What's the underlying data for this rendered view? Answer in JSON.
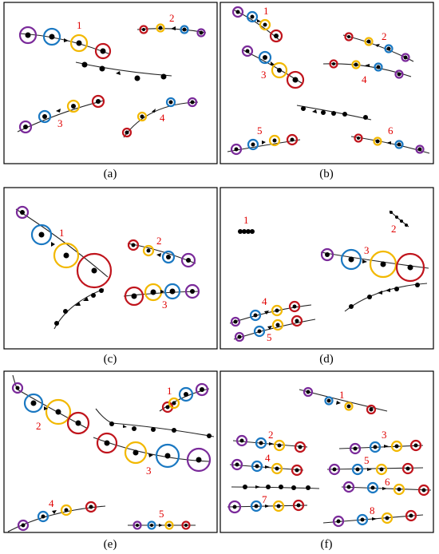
{
  "figure": {
    "panels": [
      {
        "id": "a",
        "caption": "(a)",
        "labels": [
          "1",
          "2",
          "3",
          "4"
        ]
      },
      {
        "id": "b",
        "caption": "(b)",
        "labels": [
          "1",
          "2",
          "3",
          "4",
          "5",
          "6"
        ]
      },
      {
        "id": "c",
        "caption": "(c)",
        "labels": [
          "1",
          "2",
          "3"
        ]
      },
      {
        "id": "d",
        "caption": "(d)",
        "labels": [
          "1",
          "2",
          "3",
          "4",
          "5"
        ]
      },
      {
        "id": "e",
        "caption": "(e)",
        "labels": [
          "1",
          "2",
          "3",
          "4",
          "5"
        ]
      },
      {
        "id": "f",
        "caption": "(f)",
        "labels": [
          "1",
          "2",
          "3",
          "4",
          "5",
          "6",
          "7",
          "8"
        ]
      }
    ],
    "colors": {
      "purple": "#7a2a9a",
      "blue": "#1a78c2",
      "yellow": "#f2b800",
      "red": "#c0141c",
      "label": "#e00000"
    }
  }
}
